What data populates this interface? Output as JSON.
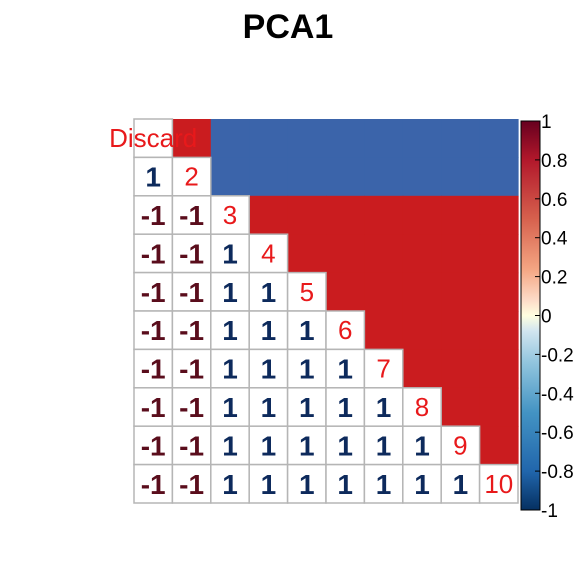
{
  "chart_data": {
    "type": "heatmap",
    "title": "PCA1",
    "variables": [
      "Discard",
      "2",
      "3",
      "4",
      "5",
      "6",
      "7",
      "8",
      "9",
      "10"
    ],
    "lower_triangle_labels": [
      [],
      [
        "1"
      ],
      [
        "-1",
        "-1"
      ],
      [
        "-1",
        "-1",
        "1"
      ],
      [
        "-1",
        "-1",
        "1",
        "1"
      ],
      [
        "-1",
        "-1",
        "1",
        "1",
        "1"
      ],
      [
        "-1",
        "-1",
        "1",
        "1",
        "1",
        "1"
      ],
      [
        "-1",
        "-1",
        "1",
        "1",
        "1",
        "1",
        "1"
      ],
      [
        "-1",
        "-1",
        "1",
        "1",
        "1",
        "1",
        "1",
        "1"
      ],
      [
        "-1",
        "-1",
        "1",
        "1",
        "1",
        "1",
        "1",
        "1",
        "1"
      ]
    ],
    "lower_triangle_values": [
      [],
      [
        1
      ],
      [
        -1,
        -1
      ],
      [
        -1,
        -1,
        1
      ],
      [
        -1,
        -1,
        1,
        1
      ],
      [
        -1,
        -1,
        1,
        1,
        1
      ],
      [
        -1,
        -1,
        1,
        1,
        1,
        1
      ],
      [
        -1,
        -1,
        1,
        1,
        1,
        1,
        1
      ],
      [
        -1,
        -1,
        1,
        1,
        1,
        1,
        1,
        1
      ],
      [
        -1,
        -1,
        1,
        1,
        1,
        1,
        1,
        1,
        1
      ]
    ],
    "upper_triangle_fill": {
      "row_0": {
        "col_1": 1,
        "rest": -1
      },
      "row_1": {
        "rest": -1
      },
      "rows_2_to_9": {
        "rest": 1
      }
    },
    "colorbar": {
      "range": [
        -1,
        1
      ],
      "ticks": [
        "-1",
        "-0.8",
        "-0.6",
        "-0.4",
        "-0.2",
        "0",
        "0.2",
        "0.4",
        "0.6",
        "0.8",
        "1"
      ]
    },
    "colors": {
      "positive": "#ca1c1f",
      "negative": "#3b64aa",
      "positive_text": "#0d2a5c",
      "negative_text": "#5a0d1c",
      "diagonal_text": "#e8191b",
      "grid": "#b5b5b5"
    }
  }
}
